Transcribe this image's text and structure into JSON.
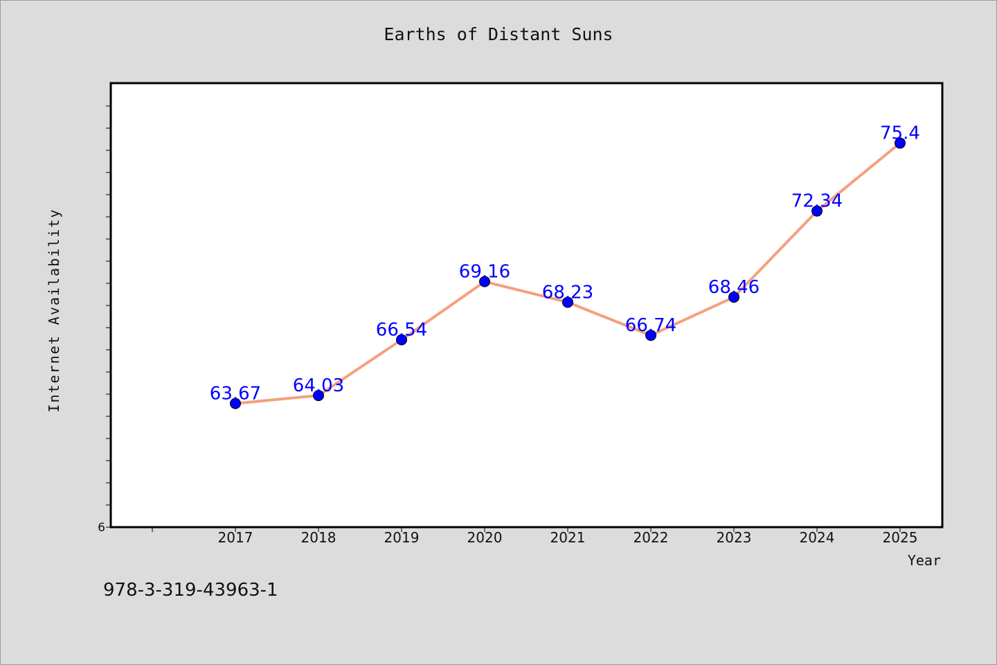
{
  "chart_data": {
    "type": "line",
    "title": "Earths of Distant Suns",
    "xlabel": "Year",
    "ylabel": "Internet Availability",
    "categories": [
      "2017",
      "2018",
      "2019",
      "2020",
      "2021",
      "2022",
      "2023",
      "2024",
      "2025"
    ],
    "series": [
      {
        "values": [
          63.67,
          64.03,
          66.54,
          69.16,
          68.23,
          66.74,
          68.46,
          72.34,
          75.4
        ],
        "data_labels": [
          "63.67",
          "64.03",
          "66.54",
          "69.16",
          "68.23",
          "66.74",
          "68.46",
          "72.34",
          "75.4"
        ],
        "line_color": "#f4a07e",
        "marker_color": "#0000ff",
        "label_color": "#0000ff"
      }
    ],
    "ylim": [
      58.1,
      78.1
    ],
    "ytick_labels": [
      "6"
    ],
    "grid": false,
    "legend": false
  },
  "footer": {
    "code": "978-3-319-43963-1"
  },
  "colors": {
    "background": "#dcdcdc",
    "plot_background": "#ffffff",
    "axis": "#000000"
  }
}
